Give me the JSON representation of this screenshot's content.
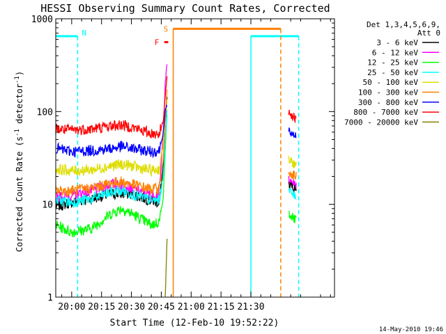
{
  "chart_data": {
    "type": "line",
    "title": "HESSI Observing Summary Count Rates, Corrected",
    "xlabel": "Start Time (12-Feb-10 19:52:22)",
    "ylabel_parts": [
      "Corrected Count Rate (s",
      "-1",
      " detector",
      "-1",
      ")"
    ],
    "ylabel": "Corrected Count Rate (s-1 detector-1)",
    "yscale": "log",
    "xlim_min": [
      -8,
      132
    ],
    "ylim": [
      1,
      1000
    ],
    "yticks": [
      1,
      10,
      100,
      1000
    ],
    "ytick_labels": [
      "1",
      "10",
      "100",
      "1000"
    ],
    "xticks_min": [
      0,
      15,
      30,
      45,
      60,
      75,
      90
    ],
    "xtick_labels": [
      "20:00",
      "20:15",
      "20:30",
      "20:45",
      "21:00",
      "21:15",
      "21:30"
    ],
    "legend_header": [
      "Det 1,3,4,5,6,9,",
      "Att 0"
    ],
    "legend_position": "right",
    "series": [
      {
        "name": "3 - 6 keV",
        "color": "#000000",
        "x": [
          -8,
          0,
          10,
          20,
          30,
          40,
          44,
          46,
          47,
          48
        ],
        "y": [
          9.5,
          10.5,
          11.5,
          13,
          13,
          11,
          10.5,
          25,
          80,
          150
        ]
      },
      {
        "name": "6 - 12 keV",
        "color": "#ff00ff",
        "x": [
          -8,
          0,
          10,
          20,
          30,
          40,
          44,
          46,
          47,
          48
        ],
        "y": [
          12,
          12.5,
          14,
          16.5,
          15,
          12.5,
          13,
          60,
          200,
          350
        ]
      },
      {
        "name": "12 - 25 keV",
        "color": "#00ff00",
        "x": [
          -8,
          0,
          10,
          20,
          25,
          30,
          40,
          44,
          46,
          47,
          48
        ],
        "y": [
          6,
          5,
          5.5,
          8,
          9,
          8,
          6,
          6.5,
          12,
          40,
          100
        ]
      },
      {
        "name": "25 - 50 keV",
        "color": "#00ffff",
        "x": [
          -8,
          0,
          10,
          20,
          25,
          30,
          40,
          44,
          46,
          47,
          48
        ],
        "y": [
          11,
          10.5,
          11.5,
          13.5,
          14,
          13,
          11,
          11,
          20,
          50,
          110
        ]
      },
      {
        "name": "50 - 100 keV",
        "color": "#dddd00",
        "x": [
          -8,
          0,
          10,
          20,
          25,
          30,
          40,
          44,
          46,
          47,
          48
        ],
        "y": [
          24,
          23,
          23.5,
          26,
          27,
          26,
          23,
          24,
          45,
          90,
          140
        ]
      },
      {
        "name": "100 - 300 keV",
        "color": "#ff8000",
        "x": [
          -8,
          0,
          10,
          20,
          25,
          30,
          40,
          44,
          46,
          47,
          48
        ],
        "y": [
          14,
          14,
          15,
          17,
          17.5,
          16.5,
          14.5,
          15,
          30,
          80,
          200
        ]
      },
      {
        "name": "300 - 800 keV",
        "color": "#0000ff",
        "x": [
          -8,
          0,
          10,
          20,
          25,
          30,
          40,
          44,
          46,
          47,
          48
        ],
        "y": [
          40,
          37,
          38,
          40,
          42,
          40,
          37,
          38,
          60,
          100,
          120
        ]
      },
      {
        "name": "800 - 7000 keV",
        "color": "#ff0000",
        "x": [
          -8,
          0,
          10,
          20,
          25,
          30,
          40,
          44,
          46,
          47,
          48
        ],
        "y": [
          65,
          63,
          65,
          70,
          72,
          68,
          58,
          58,
          80,
          150,
          250
        ]
      },
      {
        "name": "7000 - 20000 keV",
        "color": "#808000",
        "x": [
          47,
          48
        ],
        "y": [
          1,
          5
        ]
      }
    ],
    "late_segment": {
      "x_start": 109,
      "x_end": 113,
      "values": [
        {
          "color": "#0000ff",
          "y": [
            60,
            55
          ]
        },
        {
          "color": "#ff0000",
          "y": [
            100,
            80
          ]
        },
        {
          "color": "#dddd00",
          "y": [
            30,
            26
          ]
        },
        {
          "color": "#ff8000",
          "y": [
            22,
            20
          ]
        },
        {
          "color": "#ff00ff",
          "y": [
            18,
            16
          ]
        },
        {
          "color": "#000000",
          "y": [
            16,
            14
          ]
        },
        {
          "color": "#00ffff",
          "y": [
            14,
            12
          ]
        },
        {
          "color": "#00ff00",
          "y": [
            8,
            6.5
          ]
        }
      ]
    },
    "annotations": {
      "N_label": "N",
      "S_label": "S",
      "F_label": "F",
      "night_color": "#00ffff",
      "saa_color": "#ff8000",
      "flare_color": "#ff0000",
      "night_intervals": [
        [
          -8,
          3
        ],
        [
          90,
          114
        ]
      ],
      "saa_interval": [
        51,
        105
      ],
      "flare_interval": [
        46.5,
        48.5
      ]
    },
    "footer_date": "14-May-2010 19:46"
  }
}
